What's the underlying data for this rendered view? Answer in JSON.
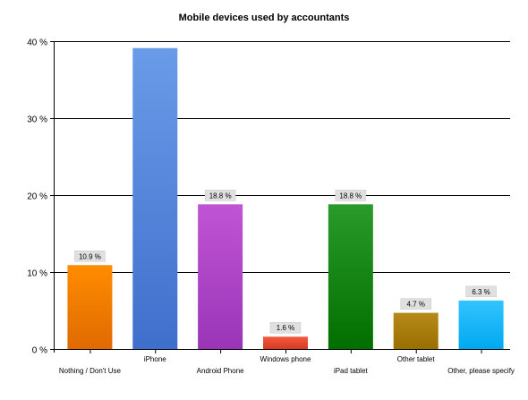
{
  "chart_data": {
    "type": "bar",
    "title": "Mobile devices used by accountants",
    "xlabel": "",
    "ylabel": "",
    "ylim": [
      0,
      40
    ],
    "yticks": [
      0,
      10,
      20,
      30,
      40
    ],
    "ytick_labels": [
      "0 %",
      "10 %",
      "20 %",
      "30 %",
      "40 %"
    ],
    "grid": true,
    "categories": [
      "Nothing / Don't Use",
      "iPhone",
      "Android Phone",
      "Windows phone",
      "iPad tablet",
      "Other tablet",
      "Other, please specify"
    ],
    "values": [
      10.9,
      39.1,
      18.8,
      1.6,
      18.8,
      4.7,
      6.3
    ],
    "data_labels": [
      "10.9 %",
      "",
      "18.8 %",
      "1.6 %",
      "18.8 %",
      "4.7 %",
      "6.3 %"
    ],
    "colors": [
      [
        "#ff8c00",
        "#e06a00"
      ],
      [
        "#6a9be8",
        "#3f6fcc"
      ],
      [
        "#c055d4",
        "#9a35b8"
      ],
      [
        "#f25a3e",
        "#d83a22"
      ],
      [
        "#2a9a2a",
        "#006f00"
      ],
      [
        "#b58a1a",
        "#9a6e00"
      ],
      [
        "#33c4ff",
        "#00a8f0"
      ]
    ]
  }
}
